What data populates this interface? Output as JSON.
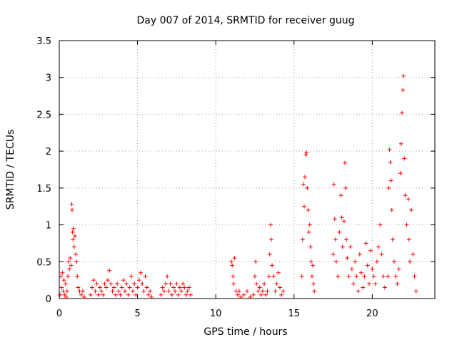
{
  "chart_data": {
    "type": "scatter",
    "title": "Day 007 of 2014, SRMTID for receiver guug",
    "xlabel": "GPS time / hours",
    "ylabel": "SRMTID / TECUs",
    "xlim": [
      0,
      24
    ],
    "ylim": [
      0,
      3.5
    ],
    "xticks": [
      0,
      5,
      10,
      15,
      20
    ],
    "yticks": [
      0,
      0.5,
      1,
      1.5,
      2,
      2.5,
      3,
      3.5
    ],
    "ytick_labels": [
      "0",
      "0.5",
      "1",
      "1.5",
      "2",
      "2.5",
      "3",
      "3.5"
    ],
    "grid": true,
    "marker": "+",
    "marker_color": "#ff0000",
    "series": [
      {
        "points": [
          [
            0.05,
            0.05
          ],
          [
            0.1,
            0.3
          ],
          [
            0.15,
            0.15
          ],
          [
            0.2,
            0.35
          ],
          [
            0.25,
            0.1
          ],
          [
            0.3,
            0.25
          ],
          [
            0.35,
            0.05
          ],
          [
            0.4,
            0.2
          ],
          [
            0.45,
            0.02
          ],
          [
            0.5,
            0.1
          ],
          [
            0.55,
            0.3
          ],
          [
            0.6,
            0.5
          ],
          [
            0.65,
            0.4
          ],
          [
            0.7,
            0.55
          ],
          [
            0.75,
            0.45
          ],
          [
            0.8,
            1.28
          ],
          [
            0.82,
            1.2
          ],
          [
            0.85,
            0.9
          ],
          [
            0.88,
            0.8
          ],
          [
            0.9,
            0.95
          ],
          [
            0.95,
            0.7
          ],
          [
            1.0,
            0.85
          ],
          [
            1.05,
            0.6
          ],
          [
            1.1,
            0.5
          ],
          [
            1.15,
            0.3
          ],
          [
            1.2,
            0.15
          ],
          [
            1.3,
            0.1
          ],
          [
            1.4,
            0.05
          ],
          [
            1.5,
            0.1
          ],
          [
            1.6,
            0.02
          ],
          [
            2.0,
            0.05
          ],
          [
            2.1,
            0.15
          ],
          [
            2.2,
            0.25
          ],
          [
            2.3,
            0.1
          ],
          [
            2.4,
            0.2
          ],
          [
            2.5,
            0.05
          ],
          [
            2.6,
            0.15
          ],
          [
            2.7,
            0.1
          ],
          [
            2.8,
            0.05
          ],
          [
            2.9,
            0.2
          ],
          [
            3.0,
            0.15
          ],
          [
            3.1,
            0.25
          ],
          [
            3.2,
            0.38
          ],
          [
            3.3,
            0.2
          ],
          [
            3.4,
            0.1
          ],
          [
            3.5,
            0.15
          ],
          [
            3.6,
            0.05
          ],
          [
            3.7,
            0.2
          ],
          [
            3.8,
            0.1
          ],
          [
            3.9,
            0.05
          ],
          [
            4.0,
            0.15
          ],
          [
            4.1,
            0.25
          ],
          [
            4.2,
            0.1
          ],
          [
            4.3,
            0.2
          ],
          [
            4.4,
            0.05
          ],
          [
            4.5,
            0.15
          ],
          [
            4.6,
            0.3
          ],
          [
            4.7,
            0.1
          ],
          [
            4.8,
            0.2
          ],
          [
            4.9,
            0.05
          ],
          [
            5.0,
            0.15
          ],
          [
            5.1,
            0.25
          ],
          [
            5.2,
            0.35
          ],
          [
            5.3,
            0.2
          ],
          [
            5.4,
            0.1
          ],
          [
            5.5,
            0.3
          ],
          [
            5.6,
            0.15
          ],
          [
            5.7,
            0.05
          ],
          [
            5.8,
            0.1
          ],
          [
            5.9,
            0.02
          ],
          [
            6.5,
            0.05
          ],
          [
            6.6,
            0.15
          ],
          [
            6.7,
            0.1
          ],
          [
            6.8,
            0.2
          ],
          [
            6.9,
            0.3
          ],
          [
            7.0,
            0.1
          ],
          [
            7.1,
            0.2
          ],
          [
            7.2,
            0.05
          ],
          [
            7.3,
            0.15
          ],
          [
            7.4,
            0.1
          ],
          [
            7.5,
            0.2
          ],
          [
            7.6,
            0.05
          ],
          [
            7.7,
            0.15
          ],
          [
            7.8,
            0.1
          ],
          [
            7.9,
            0.2
          ],
          [
            8.0,
            0.15
          ],
          [
            8.1,
            0.05
          ],
          [
            8.2,
            0.1
          ],
          [
            8.3,
            0.15
          ],
          [
            8.4,
            0.05
          ],
          [
            11.0,
            0.5
          ],
          [
            11.05,
            0.45
          ],
          [
            11.1,
            0.3
          ],
          [
            11.15,
            0.2
          ],
          [
            11.2,
            0.55
          ],
          [
            11.3,
            0.1
          ],
          [
            11.4,
            0.05
          ],
          [
            11.5,
            0.1
          ],
          [
            11.6,
            0.02
          ],
          [
            11.8,
            0.05
          ],
          [
            12.0,
            0.1
          ],
          [
            12.2,
            0.02
          ],
          [
            12.4,
            0.05
          ],
          [
            12.5,
            0.3
          ],
          [
            12.55,
            0.5
          ],
          [
            12.6,
            0.2
          ],
          [
            12.7,
            0.1
          ],
          [
            12.8,
            0.15
          ],
          [
            12.9,
            0.05
          ],
          [
            13.0,
            0.1
          ],
          [
            13.1,
            0.2
          ],
          [
            13.2,
            0.05
          ],
          [
            13.3,
            0.1
          ],
          [
            13.4,
            0.3
          ],
          [
            13.45,
            0.6
          ],
          [
            13.5,
            1.0
          ],
          [
            13.55,
            0.8
          ],
          [
            13.6,
            0.45
          ],
          [
            13.7,
            0.3
          ],
          [
            13.8,
            0.1
          ],
          [
            13.9,
            0.2
          ],
          [
            14.0,
            0.35
          ],
          [
            14.1,
            0.15
          ],
          [
            14.2,
            0.05
          ],
          [
            14.3,
            0.1
          ],
          [
            15.5,
            0.3
          ],
          [
            15.55,
            0.8
          ],
          [
            15.6,
            1.55
          ],
          [
            15.65,
            1.25
          ],
          [
            15.7,
            1.65
          ],
          [
            15.75,
            1.95
          ],
          [
            15.8,
            1.98
          ],
          [
            15.85,
            1.5
          ],
          [
            15.9,
            1.2
          ],
          [
            15.95,
            0.9
          ],
          [
            16.0,
            1.0
          ],
          [
            16.05,
            0.7
          ],
          [
            16.1,
            0.5
          ],
          [
            16.15,
            0.3
          ],
          [
            16.2,
            0.45
          ],
          [
            16.25,
            0.2
          ],
          [
            16.3,
            0.1
          ],
          [
            17.5,
            0.6
          ],
          [
            17.55,
            1.55
          ],
          [
            17.6,
            1.08
          ],
          [
            17.65,
            0.8
          ],
          [
            17.7,
            0.5
          ],
          [
            17.8,
            0.3
          ],
          [
            17.9,
            0.9
          ],
          [
            18.0,
            1.4
          ],
          [
            18.05,
            1.1
          ],
          [
            18.1,
            0.7
          ],
          [
            18.2,
            1.05
          ],
          [
            18.25,
            1.84
          ],
          [
            18.3,
            1.5
          ],
          [
            18.35,
            0.8
          ],
          [
            18.4,
            0.55
          ],
          [
            18.5,
            0.3
          ],
          [
            18.6,
            0.7
          ],
          [
            18.7,
            0.4
          ],
          [
            18.8,
            0.2
          ],
          [
            18.9,
            0.5
          ],
          [
            19.0,
            0.3
          ],
          [
            19.1,
            0.1
          ],
          [
            19.2,
            0.6
          ],
          [
            19.3,
            0.35
          ],
          [
            19.4,
            0.15
          ],
          [
            19.5,
            0.3
          ],
          [
            19.6,
            0.75
          ],
          [
            19.7,
            0.45
          ],
          [
            19.8,
            0.2
          ],
          [
            19.9,
            0.65
          ],
          [
            20.0,
            0.4
          ],
          [
            20.1,
            0.3
          ],
          [
            20.2,
            0.2
          ],
          [
            20.3,
            0.5
          ],
          [
            20.4,
            0.7
          ],
          [
            20.5,
            1.0
          ],
          [
            20.6,
            0.6
          ],
          [
            20.7,
            0.3
          ],
          [
            20.8,
            0.15
          ],
          [
            21.0,
            0.3
          ],
          [
            21.05,
            1.5
          ],
          [
            21.1,
            2.02
          ],
          [
            21.15,
            1.85
          ],
          [
            21.2,
            1.6
          ],
          [
            21.25,
            1.2
          ],
          [
            21.3,
            0.8
          ],
          [
            21.4,
            0.5
          ],
          [
            21.5,
            0.3
          ],
          [
            21.6,
            0.2
          ],
          [
            21.7,
            0.4
          ],
          [
            21.8,
            1.7
          ],
          [
            21.85,
            2.1
          ],
          [
            21.9,
            2.52
          ],
          [
            21.95,
            2.83
          ],
          [
            22.0,
            3.02
          ],
          [
            22.05,
            1.9
          ],
          [
            22.1,
            1.4
          ],
          [
            22.2,
            1.0
          ],
          [
            22.3,
            1.35
          ],
          [
            22.35,
            0.8
          ],
          [
            22.4,
            0.5
          ],
          [
            22.5,
            1.2
          ],
          [
            22.6,
            0.6
          ],
          [
            22.7,
            0.3
          ],
          [
            22.8,
            0.1
          ]
        ]
      }
    ]
  }
}
